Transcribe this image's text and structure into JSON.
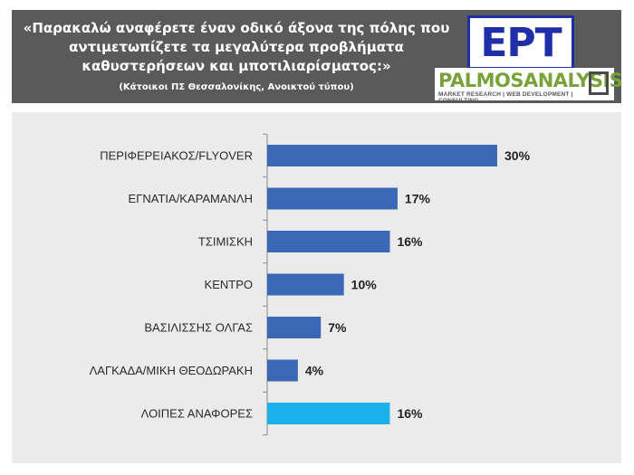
{
  "header": {
    "title_line1": "«Παρακαλώ αναφέρετε έναν οδικό άξονα της πόλης που",
    "title_line2": "αντιμετωπίζετε τα μεγαλύτερα προβλήματα",
    "title_line3": "καθυστερήσεων και μποτιλιαρίσματος:»",
    "subtitle": "(Κάτοικοι ΠΣ Θεσσαλονίκης, Ανοικτού τύπου)",
    "logo_ert": "ΕΡΤ",
    "logo_palmos": "PALMOSANALYSIS",
    "logo_palmos_tagline": "MARKET RESEARCH | WEB DEVELOPMENT | CONSULTING"
  },
  "colors": {
    "header_bg": "#5a5a5a",
    "panel_bg": "#ebebeb",
    "bar_primary": "#3a68b4",
    "bar_other": "#1ab0ec",
    "ert_blue": "#1e2fa8",
    "palmos_green": "#7aa23a"
  },
  "chart_data": {
    "type": "bar",
    "orientation": "horizontal",
    "categories": [
      "ΠΕΡΙΦΕΡΕΙΑΚΟΣ/FLYOVER",
      "ΕΓΝΑΤΙΑ/ΚΑΡΑΜΑΝΛΗ",
      "ΤΣΙΜΙΣΚΗ",
      "ΚΕΝΤΡΟ",
      "ΒΑΣΙΛΙΣΣΗΣ ΟΛΓΑΣ",
      "ΛΑΓΚΑΔΑ/ΜΙΚΗ ΘΕΟΔΩΡΑΚΗ",
      "ΛΟΙΠΕΣ ΑΝΑΦΟΡΕΣ"
    ],
    "values": [
      30,
      17,
      16,
      10,
      7,
      4,
      16
    ],
    "value_labels": [
      "30%",
      "17%",
      "16%",
      "10%",
      "7%",
      "4%",
      "16%"
    ],
    "highlight_category": "ΛΟΙΠΕΣ ΑΝΑΦΟΡΕΣ",
    "xlim": [
      0,
      30
    ],
    "grid": false,
    "legend": "none"
  }
}
